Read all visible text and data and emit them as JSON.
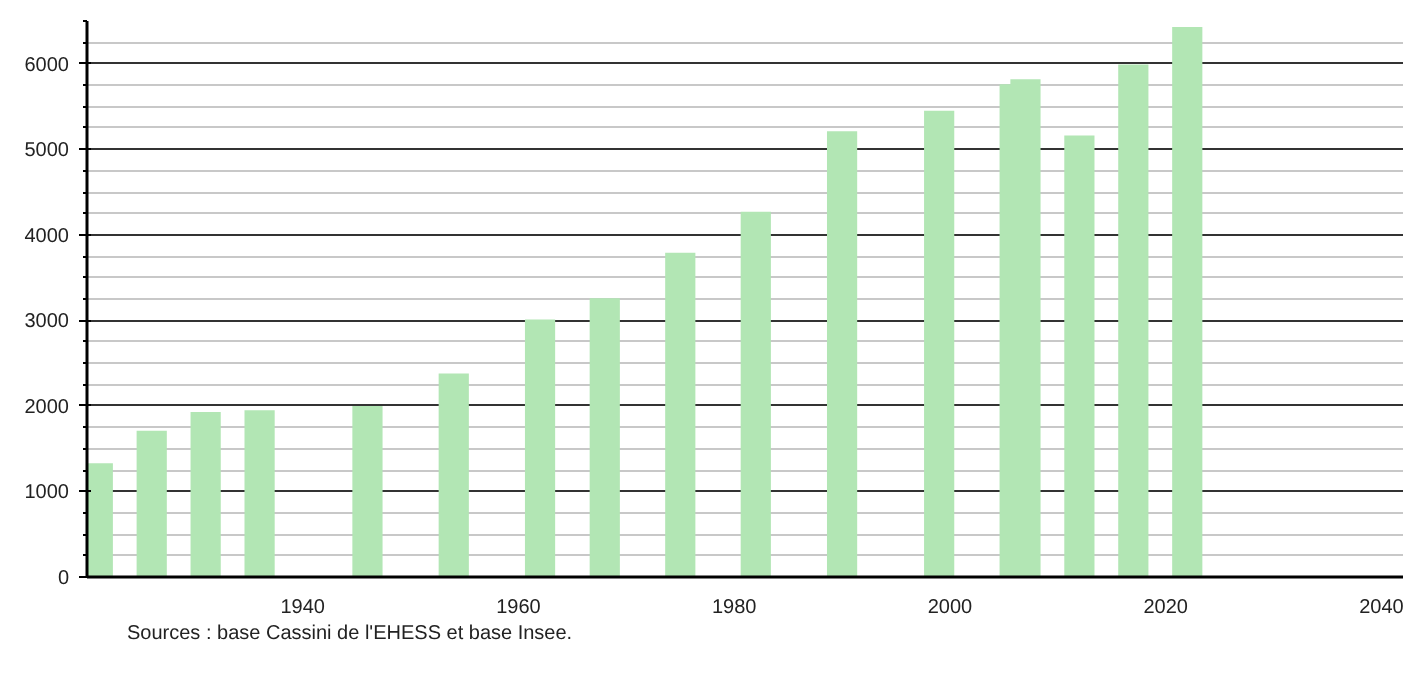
{
  "chart_data": {
    "type": "bar",
    "color": "#b2e6b4",
    "x": [
      1921,
      1926,
      1931,
      1936,
      1946,
      1954,
      1962,
      1968,
      1975,
      1982,
      1990,
      1999,
      2006,
      2007,
      2012,
      2017,
      2022
    ],
    "values": [
      1330,
      1710,
      1930,
      1950,
      2000,
      2380,
      3010,
      3260,
      3790,
      4270,
      5210,
      5450,
      5760,
      5820,
      5160,
      5990,
      6430
    ],
    "xlim": [
      1920,
      2042
    ],
    "xticks": [
      1940,
      1960,
      1980,
      2000,
      2020,
      2040
    ],
    "ylim": [
      0,
      6500
    ],
    "yticks": [
      0,
      {
        "value": 250,
        "label": null
      },
      {
        "value": 500,
        "label": null
      },
      {
        "value": 750,
        "label": null
      },
      1000,
      {
        "value": 1250,
        "label": null
      },
      {
        "value": 1500,
        "label": null
      },
      {
        "value": 1750,
        "label": null
      },
      2000,
      {
        "value": 2250,
        "label": null
      },
      {
        "value": 2500,
        "label": null
      },
      {
        "value": 2750,
        "label": null
      },
      3000,
      {
        "value": 3250,
        "label": null
      },
      {
        "value": 3500,
        "label": null
      },
      {
        "value": 3750,
        "label": null
      },
      4000,
      {
        "value": 4250,
        "label": null
      },
      {
        "value": 4500,
        "label": null
      },
      {
        "value": 4750,
        "label": null
      },
      5000,
      {
        "value": 5250,
        "label": null
      },
      {
        "value": 5500,
        "label": null
      },
      {
        "value": 5750,
        "label": null
      },
      6000,
      {
        "value": 6250,
        "label": null
      },
      {
        "value": 6500,
        "label": null
      }
    ],
    "grid": "y",
    "annotations": [
      "Sources : base Cassini de l'EHESS et base Insee."
    ]
  }
}
